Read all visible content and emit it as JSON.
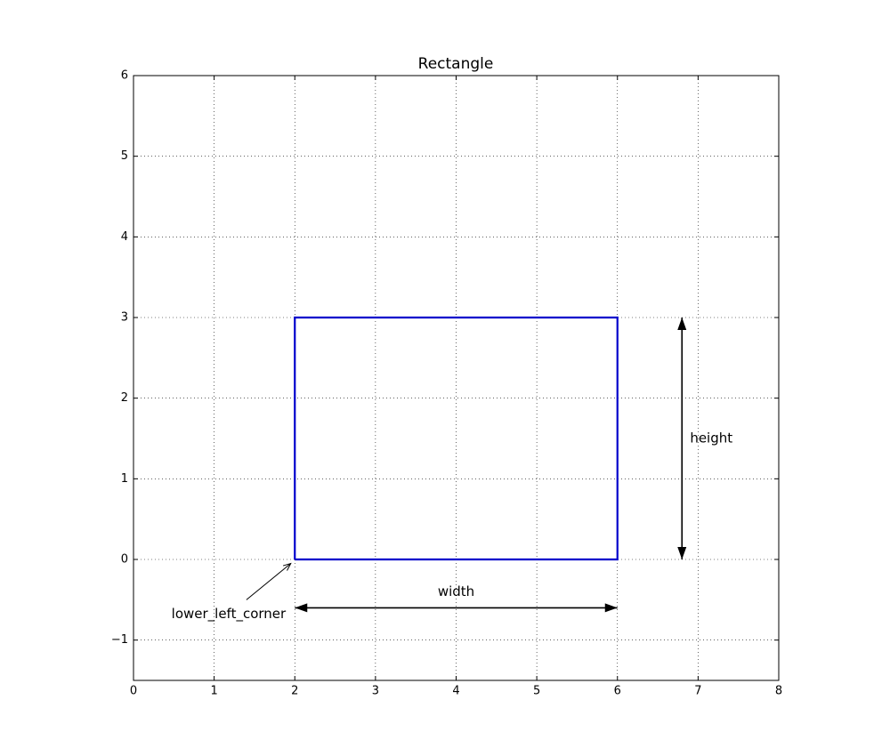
{
  "chart_data": {
    "type": "line",
    "title": "Rectangle",
    "x": [
      2,
      6,
      6,
      2,
      2
    ],
    "series": [
      {
        "color": "#0000cc",
        "values": [
          0,
          0,
          3,
          3,
          0
        ]
      }
    ],
    "xlim": [
      0,
      8
    ],
    "ylim": [
      -1.5,
      6
    ],
    "xticks": [
      0,
      1,
      2,
      3,
      4,
      5,
      6,
      7,
      8
    ],
    "yticks": [
      {
        "value": -1,
        "label": "−1"
      },
      0,
      1,
      2,
      3,
      4,
      5,
      6
    ],
    "grid": true,
    "annotations": [
      {
        "text": "width",
        "x": 4,
        "y": -0.4,
        "arrow_x": [
          2,
          6
        ],
        "arrow_y": [
          -0.6,
          -0.6
        ],
        "arrowstyle": "<->"
      },
      {
        "text": "height",
        "x": 6.9,
        "y": 1.5,
        "arrow_x": [
          6.8,
          6.8
        ],
        "arrow_y": [
          0,
          3
        ],
        "arrowstyle": "<->"
      },
      {
        "text": "lower_left_corner",
        "x": 1.18,
        "y": -0.68,
        "arrow_x": [
          1.4,
          1.95
        ],
        "arrow_y": [
          -0.5,
          -0.05
        ],
        "arrowstyle": "->"
      }
    ]
  }
}
